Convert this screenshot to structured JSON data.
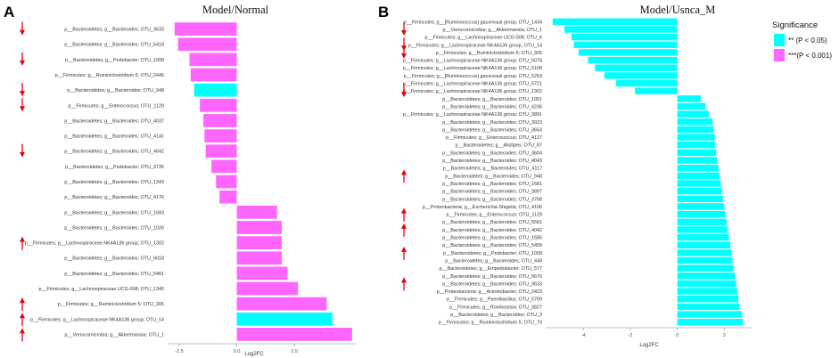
{
  "panel_labels": [
    "A",
    "B"
  ],
  "colors": {
    "significant_005": "#00FFFF",
    "significant_0001": "#FF66FF",
    "arrow": "#E8000B",
    "axis": "#888888"
  },
  "legend": {
    "title": "Significance",
    "items": [
      {
        "label": "** (P < 0.05)",
        "color": "#00FFFF"
      },
      {
        "label": "***(P < 0.001)",
        "color": "#FF66FF"
      }
    ]
  },
  "chart_data": [
    {
      "type": "bar",
      "orientation": "horizontal",
      "title": "Model/Normal",
      "xlabel": "Log2FC",
      "xlim": [
        -3.0,
        5.2
      ],
      "xticks": [
        -2.5,
        0.0,
        2.5
      ],
      "xtick_labels": [
        "-2.5",
        "0.0",
        "2.5"
      ],
      "bars": [
        {
          "label": "p__Bacteroidetes; g__Bacteroides; OTU_3633",
          "value": -2.7,
          "sig": "***",
          "arrow": "down"
        },
        {
          "label": "p__Bacteroidetes; g__Bacteroides; OTU_5418",
          "value": -2.55,
          "sig": "***",
          "arrow": ""
        },
        {
          "label": "p__Bacteroidetes; g__Pedobacter; OTU_1008",
          "value": -2.05,
          "sig": "***",
          "arrow": "down"
        },
        {
          "label": "p__Firmicutes; g__Ruminiclostridium 5; OTU_2446",
          "value": -2.0,
          "sig": "***",
          "arrow": ""
        },
        {
          "label": "p__Bacteroidetes; g__Bacteroides; OTU_948",
          "value": -1.85,
          "sig": "**",
          "arrow": "down"
        },
        {
          "label": "p__Firmicutes; g__Enterococcus; OTU_1129",
          "value": -1.6,
          "sig": "***",
          "arrow": "down"
        },
        {
          "label": "p__Bacteroidetes; g__Bacteroides; OTU_4037",
          "value": -1.45,
          "sig": "***",
          "arrow": ""
        },
        {
          "label": "p__Bacteroidetes; g__Bacteroides; OTU_4141",
          "value": -1.4,
          "sig": "***",
          "arrow": ""
        },
        {
          "label": "p__Bacteroidetes; g__Bacteroides; OTU_4042",
          "value": -1.35,
          "sig": "***",
          "arrow": "down"
        },
        {
          "label": "p__Bacteroidetes; g__Pedobacter; OTU_3735",
          "value": -1.1,
          "sig": "***",
          "arrow": ""
        },
        {
          "label": "p__Bacteroidetes; g__Bacteroides; OTU_1343",
          "value": -0.9,
          "sig": "***",
          "arrow": ""
        },
        {
          "label": "p__Bacteroidetes; g__Bacteroides; OTU_4176",
          "value": -0.75,
          "sig": "***",
          "arrow": ""
        },
        {
          "label": "p__Bacteroidetes; g__Bacteroides; OTU_1683",
          "value": 1.75,
          "sig": "***",
          "arrow": ""
        },
        {
          "label": "p__Bacteroidetes; g__Bacteroides; OTU_1026",
          "value": 1.95,
          "sig": "***",
          "arrow": ""
        },
        {
          "label": "p__Firmicutes; g__Lachnospiraceae NK4A136 group; OTU_1302",
          "value": 1.95,
          "sig": "***",
          "arrow": "up"
        },
        {
          "label": "p__Bacteroidetes; g__Bacteroides; OTU_6018",
          "value": 1.95,
          "sig": "***",
          "arrow": ""
        },
        {
          "label": "p__Bacteroidetes; g__Bacteroides; OTU_5481",
          "value": 2.2,
          "sig": "***",
          "arrow": ""
        },
        {
          "label": "p__Firmicutes; g__Lachnospiraceae UCG-008; OTU_1345",
          "value": 2.65,
          "sig": "***",
          "arrow": ""
        },
        {
          "label": "p__Firmicutes; g__Ruminiclostridium 5; OTU_305",
          "value": 3.9,
          "sig": "***",
          "arrow": "up"
        },
        {
          "label": "p__Firmicutes; g__Lachnospiraceae NK4A136 group; OTU_14",
          "value": 4.15,
          "sig": "**",
          "arrow": "up"
        },
        {
          "label": "p__Verrucomicrobia; g__Akkermansia; OTU_1",
          "value": 5.0,
          "sig": "***",
          "arrow": "up"
        }
      ]
    },
    {
      "type": "bar",
      "orientation": "horizontal",
      "title": "Model/Usnca_M",
      "xlabel": "Log2FC",
      "xlim": [
        -5.6,
        3.2
      ],
      "xticks": [
        -4,
        -2,
        0,
        2
      ],
      "xtick_labels": [
        "-4",
        "-2",
        "0",
        "2"
      ],
      "bars": [
        {
          "label": "p__Firmicutes; g__[Ruminococcus] gauvreauii group; OTU_1434",
          "value": -5.3,
          "sig": "**",
          "arrow": ""
        },
        {
          "label": "p__Verrucomicrobia; g__Akkermansia; OTU_1",
          "value": -4.8,
          "sig": "**",
          "arrow": "down"
        },
        {
          "label": "p__Firmicutes; g__Lachnospiraceae UCG-008; OTU_6",
          "value": -4.5,
          "sig": "**",
          "arrow": ""
        },
        {
          "label": "p__Firmicutes; g__Lachnospiraceae NK4A136 group; OTU_14",
          "value": -4.4,
          "sig": "**",
          "arrow": "down"
        },
        {
          "label": "p__Firmicutes; g__Ruminiclostridium 5; OTU_305",
          "value": -4.2,
          "sig": "**",
          "arrow": "down"
        },
        {
          "label": "p__Firmicutes; g__Lachnospiraceae NK4A136 group; OTU_5078",
          "value": -3.8,
          "sig": "**",
          "arrow": ""
        },
        {
          "label": "p__Firmicutes; g__Lachnospiraceae NK4A136 group; OTU_5158",
          "value": -3.5,
          "sig": "**",
          "arrow": ""
        },
        {
          "label": "p__Firmicutes; g__[Ruminococcus] gauvreauii group; OTU_5253",
          "value": -3.1,
          "sig": "**",
          "arrow": ""
        },
        {
          "label": "p__Firmicutes; g__Lachnospiraceae NK4A136 group; OTU_5721",
          "value": -2.6,
          "sig": "**",
          "arrow": ""
        },
        {
          "label": "p__Firmicutes; g__Lachnospiraceae NK4A136 group; OTU_1302",
          "value": -1.8,
          "sig": "**",
          "arrow": "down"
        },
        {
          "label": "p__Bacteroidetes; g__Bacteroides; OTU_1051",
          "value": 1.0,
          "sig": "**",
          "arrow": ""
        },
        {
          "label": "p__Bacteroidetes; g__Bacteroides; OTU_4236",
          "value": 1.2,
          "sig": "**",
          "arrow": ""
        },
        {
          "label": "p__Firmicutes; g__Lachnospiraceae NK4A136 group; OTU_3891",
          "value": 1.35,
          "sig": "**",
          "arrow": ""
        },
        {
          "label": "p__Bacteroidetes; g__Bacteroides; OTU_3923",
          "value": 1.5,
          "sig": "**",
          "arrow": ""
        },
        {
          "label": "p__Bacteroidetes; g__Bacteroides; OTU_3654",
          "value": 1.55,
          "sig": "**",
          "arrow": ""
        },
        {
          "label": "p__Firmicutes; g__Enterococcus; OTU_4127",
          "value": 1.6,
          "sig": "**",
          "arrow": ""
        },
        {
          "label": "p__Bacteroidetes; g__Alistipes; OTU_87",
          "value": 1.6,
          "sig": "**",
          "arrow": ""
        },
        {
          "label": "p__Bacteroidetes; g__Bacteroides; OTU_3604",
          "value": 1.65,
          "sig": "**",
          "arrow": ""
        },
        {
          "label": "p__Bacteroidetes; g__Bacteroides; OTU_4043",
          "value": 1.7,
          "sig": "**",
          "arrow": ""
        },
        {
          "label": "p__Bacteroidetes; g__Bacteroides; OTU_4117",
          "value": 1.75,
          "sig": "**",
          "arrow": ""
        },
        {
          "label": "p__Bacteroidetes; g__Bacteroides; OTU_948",
          "value": 1.8,
          "sig": "**",
          "arrow": "up"
        },
        {
          "label": "p__Bacteroidetes; g__Bacteroides; OTU_1681",
          "value": 1.85,
          "sig": "**",
          "arrow": ""
        },
        {
          "label": "p__Bacteroidetes; g__Bacteroides; OTU_3897",
          "value": 1.9,
          "sig": "**",
          "arrow": ""
        },
        {
          "label": "p__Bacteroidetes; g__Bacteroides; OTU_3768",
          "value": 1.95,
          "sig": "**",
          "arrow": ""
        },
        {
          "label": "p__Proteobacteria; g__Escherichia-Shigella; OTU_4106",
          "value": 2.0,
          "sig": "**",
          "arrow": ""
        },
        {
          "label": "p__Firmicutes; g__Enterococcus; OTU_1129",
          "value": 2.05,
          "sig": "**",
          "arrow": "up"
        },
        {
          "label": "p__Bacteroidetes; g__Bacteroides; OTU_5561",
          "value": 2.1,
          "sig": "**",
          "arrow": ""
        },
        {
          "label": "p__Bacteroidetes; g__Bacteroides; OTU_4042",
          "value": 2.15,
          "sig": "**",
          "arrow": "up"
        },
        {
          "label": "p__Bacteroidetes; g__Bacteroides; OTU_1585",
          "value": 2.2,
          "sig": "**",
          "arrow": ""
        },
        {
          "label": "p__Bacteroidetes; g__Bacteroides; OTU_5459",
          "value": 2.25,
          "sig": "**",
          "arrow": ""
        },
        {
          "label": "p__Bacteroidetes; g__Pedobacter; OTU_1008",
          "value": 2.3,
          "sig": "**",
          "arrow": "up"
        },
        {
          "label": "p__Bacteroidetes; g__Bacteroides; OTU_449",
          "value": 2.35,
          "sig": "**",
          "arrow": ""
        },
        {
          "label": "p__Bacteroidetes; g__Empedobacter; OTU_577",
          "value": 2.4,
          "sig": "**",
          "arrow": ""
        },
        {
          "label": "p__Bacteroidetes; g__Bacteroides; OTU_5670",
          "value": 2.45,
          "sig": "**",
          "arrow": ""
        },
        {
          "label": "p__Bacteroidetes; g__Bacteroides; OTU_3633",
          "value": 2.5,
          "sig": "**",
          "arrow": "up"
        },
        {
          "label": "p__Proteobacteria; g__Acinetobacter; OTU_2423",
          "value": 2.55,
          "sig": "**",
          "arrow": ""
        },
        {
          "label": "p__Firmicutes; g__Paenibacillus; OTU_5709",
          "value": 2.6,
          "sig": "**",
          "arrow": ""
        },
        {
          "label": "p__Firmicutes; g__Romboutsia; OTU_3827",
          "value": 2.65,
          "sig": "**",
          "arrow": ""
        },
        {
          "label": "p__Bacteroidetes; g__Bacteroides; OTU_3",
          "value": 2.75,
          "sig": "**",
          "arrow": ""
        },
        {
          "label": "p__Firmicutes; g__Ruminiclostridium 5; OTU_73",
          "value": 2.8,
          "sig": "**",
          "arrow": ""
        }
      ]
    }
  ]
}
